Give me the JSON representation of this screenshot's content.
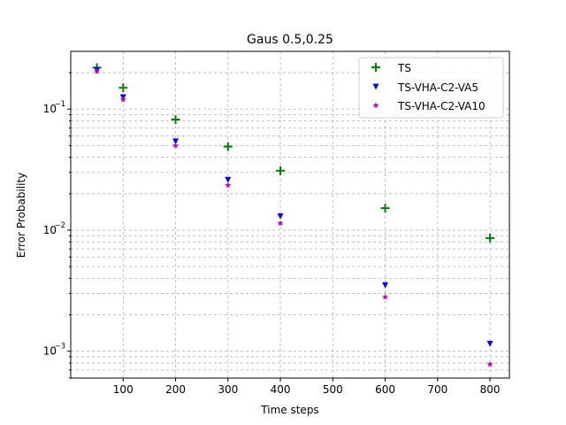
{
  "chart_data": {
    "type": "scatter",
    "title": "Gaus 0.5,0.25",
    "xlabel": "Time steps",
    "ylabel": "Error Probability",
    "xlim": [
      0,
      837
    ],
    "ylim": [
      0.0006,
      0.3
    ],
    "yscale": "log",
    "grid": true,
    "legend_position": "top-right",
    "x": [
      50,
      100,
      200,
      300,
      400,
      600,
      800
    ],
    "x_ticks": [
      100,
      200,
      300,
      400,
      500,
      600,
      700,
      800
    ],
    "y_ticks": [
      {
        "value": 0.001,
        "base": "10",
        "exp": "−3"
      },
      {
        "value": 0.01,
        "base": "10",
        "exp": "−2"
      },
      {
        "value": 0.1,
        "base": "10",
        "exp": "−1"
      }
    ],
    "series": [
      {
        "name": "TS",
        "marker": "plus",
        "color": "#008000",
        "values": [
          0.22,
          0.15,
          0.082,
          0.049,
          0.031,
          0.0152,
          0.0086
        ]
      },
      {
        "name": "TS-VHA-C2-VA5",
        "marker": "triangle-down",
        "color": "#0000ff",
        "values": [
          0.21,
          0.125,
          0.054,
          0.026,
          0.013,
          0.0035,
          0.00115
        ]
      },
      {
        "name": "TS-VHA-C2-VA10",
        "marker": "star",
        "color": "#bf00bf",
        "values": [
          0.205,
          0.12,
          0.05,
          0.0235,
          0.0114,
          0.0028,
          0.00078
        ]
      }
    ]
  }
}
